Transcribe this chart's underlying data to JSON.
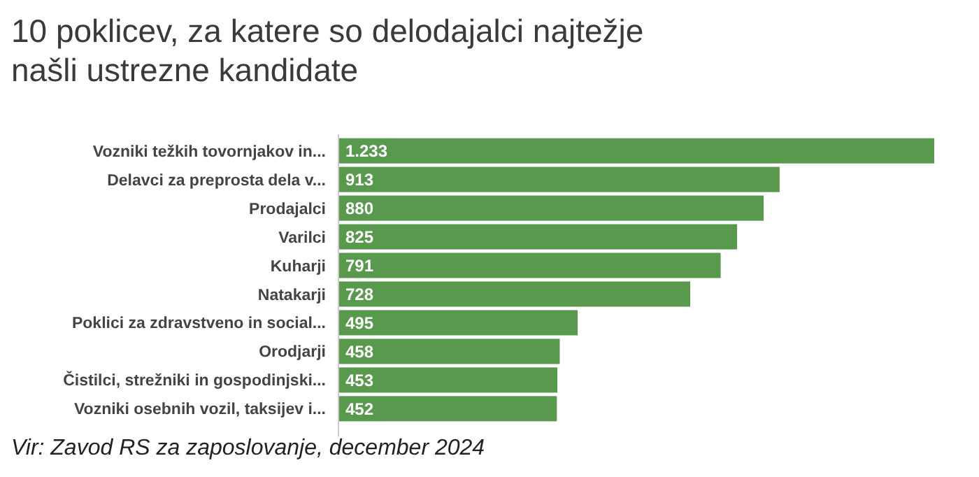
{
  "chart_data": {
    "type": "bar",
    "orientation": "horizontal",
    "title": "10 poklicev, za katere so delodajalci najtežje našli ustrezne kandidate",
    "categories": [
      "Vozniki težkih tovornjakov in...",
      "Delavci za preprosta dela v...",
      "Prodajalci",
      "Varilci",
      "Kuharji",
      "Natakarji",
      "Poklici za zdravstveno in social...",
      "Orodjarji",
      "Čistilci, strežniki in gospodinjski...",
      "Vozniki osebnih vozil, taksijev i..."
    ],
    "values": [
      1233,
      913,
      880,
      825,
      791,
      728,
      495,
      458,
      453,
      452
    ],
    "value_labels": [
      "1.233",
      "913",
      "880",
      "825",
      "791",
      "728",
      "495",
      "458",
      "453",
      "452"
    ],
    "color": "#58994d",
    "annotations": [
      "Vir: Zavod RS za zaposlovanje, december 2024"
    ]
  }
}
